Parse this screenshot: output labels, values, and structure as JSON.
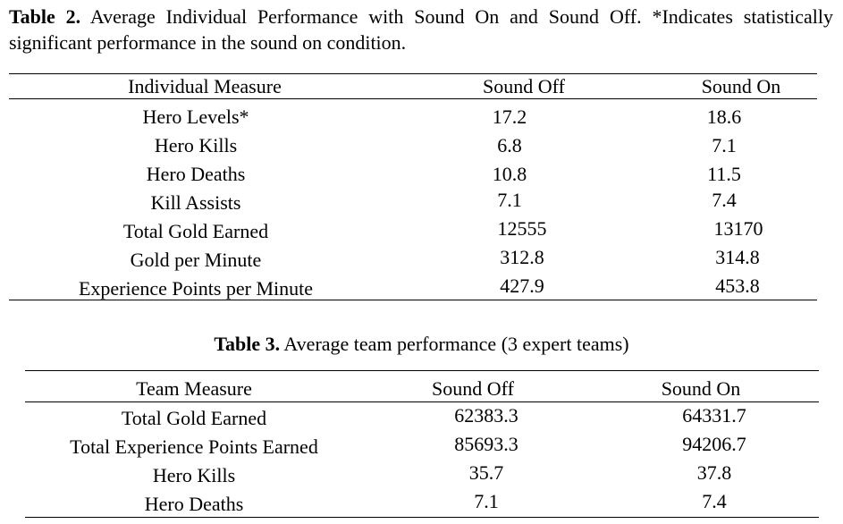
{
  "table2": {
    "caption_label": "Table 2.",
    "caption_text": "Average Individual Performance with Sound On and Sound Off. *Indicates statistically significant performance in the sound on condition.",
    "headers": [
      "Individual Measure",
      "Sound Off",
      "Sound On"
    ],
    "rows": [
      [
        "Hero Levels*",
        "17.2",
        "18.6"
      ],
      [
        "Hero Kills",
        "6.8",
        "7.1"
      ],
      [
        "Hero Deaths",
        "10.8",
        "11.5"
      ],
      [
        "Kill Assists",
        "7.1",
        "7.4"
      ],
      [
        "Total Gold Earned",
        "12555",
        "13170"
      ],
      [
        "Gold per Minute",
        "312.8",
        "314.8"
      ],
      [
        "Experience Points per Minute",
        "427.9",
        "453.8"
      ]
    ]
  },
  "table3": {
    "caption_label": "Table 3.",
    "caption_text": "Average team performance (3 expert teams)",
    "headers": [
      "Team Measure",
      "Sound Off",
      "Sound On"
    ],
    "rows": [
      [
        "Total Gold Earned",
        "62383.3",
        "64331.7"
      ],
      [
        "Total Experience Points Earned",
        "85693.3",
        "94206.7"
      ],
      [
        "Hero Kills",
        "35.7",
        "37.8"
      ],
      [
        "Hero Deaths",
        "7.1",
        "7.4"
      ]
    ]
  }
}
